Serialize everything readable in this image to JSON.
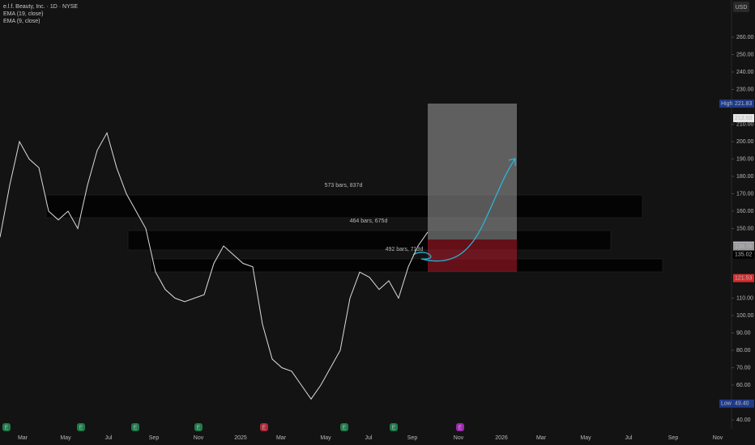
{
  "header": {
    "symbol": "e.l.f. Beauty, Inc. · 1D · NYSE",
    "ema_19": "EMA (19, close)",
    "ema_9": "EMA (9, close)",
    "currency": "USD"
  },
  "chart": {
    "ylim": [
      40,
      260
    ],
    "yticks": [
      {
        "value": 40,
        "label": "40.00"
      },
      {
        "value": 50,
        "label": "50.00"
      },
      {
        "value": 60,
        "label": "60.00"
      },
      {
        "value": 70,
        "label": "70.00"
      },
      {
        "value": 80,
        "label": "80.00"
      },
      {
        "value": 90,
        "label": "90.00"
      },
      {
        "value": 100,
        "label": "100.00"
      },
      {
        "value": 110,
        "label": "110.00"
      },
      {
        "value": 150,
        "label": "150.00"
      },
      {
        "value": 160,
        "label": "160.00"
      },
      {
        "value": 170,
        "label": "170.00"
      },
      {
        "value": 180,
        "label": "180.00"
      },
      {
        "value": 190,
        "label": "190.00"
      },
      {
        "value": 200,
        "label": "200.00"
      },
      {
        "value": 210,
        "label": "210.00"
      },
      {
        "value": 230,
        "label": "230.00"
      },
      {
        "value": 240,
        "label": "240.00"
      },
      {
        "value": 250,
        "label": "250.00"
      },
      {
        "value": 260,
        "label": "260.00"
      }
    ],
    "time_labels": [
      "Mar",
      "May",
      "Jul",
      "Sep",
      "Nov",
      "2025",
      "Mar",
      "May",
      "Jul",
      "Sep",
      "Nov",
      "2026",
      "Mar",
      "May",
      "Jul",
      "Sep",
      "Nov"
    ],
    "price_path": [
      145,
      175,
      200,
      190,
      185,
      160,
      155,
      160,
      150,
      175,
      195,
      205,
      185,
      170,
      160,
      150,
      125,
      115,
      110,
      108,
      110,
      112,
      130,
      140,
      135,
      130,
      128,
      95,
      75,
      70,
      68,
      60,
      52,
      60,
      70,
      80,
      110,
      125,
      122,
      115,
      120,
      110,
      128,
      140,
      148
    ],
    "badges": [
      {
        "tag": "High",
        "price": {
          "value": 221.83,
          "label": "221.83"
        },
        "color": "#1e3a8a"
      },
      {
        "price": {
          "value": 213.5,
          "label": "213.50"
        },
        "color": "#e8e8e8"
      },
      {
        "price": {
          "value": 140.45,
          "label": "140.45"
        },
        "color": "#2962ff"
      },
      {
        "price": {
          "value": 139.96,
          "label": "139.96"
        },
        "color": "#e8e8e8"
      },
      {
        "price": {
          "value": 139.75,
          "label": "139.75"
        },
        "color": "#9a9a9a"
      },
      {
        "price": {
          "value": 135.02,
          "label": "135.02"
        },
        "color": "#000000"
      },
      {
        "price": {
          "value": 121.53,
          "label": "121.53"
        },
        "color": "#d32f2f"
      },
      {
        "tag": "Low",
        "price": {
          "value": 49.4,
          "label": "49.40"
        },
        "color": "#1e3a8a"
      }
    ],
    "zones": [
      {
        "label": "573 bars, 837d"
      },
      {
        "label": "464 bars, 675d"
      },
      {
        "label": "492 bars, 713d"
      }
    ],
    "events": [
      {
        "label": "E",
        "color": "#1f7a4a"
      },
      {
        "label": "E",
        "color": "#1f7a4a"
      },
      {
        "label": "E",
        "color": "#1f7a4a"
      },
      {
        "label": "E",
        "color": "#1f7a4a"
      },
      {
        "label": "E",
        "color": "#b0283b"
      },
      {
        "label": "E",
        "color": "#1f7a4a"
      },
      {
        "label": "E",
        "color": "#1f7a4a"
      },
      {
        "label": "E",
        "color": "#9c27b0"
      }
    ]
  }
}
